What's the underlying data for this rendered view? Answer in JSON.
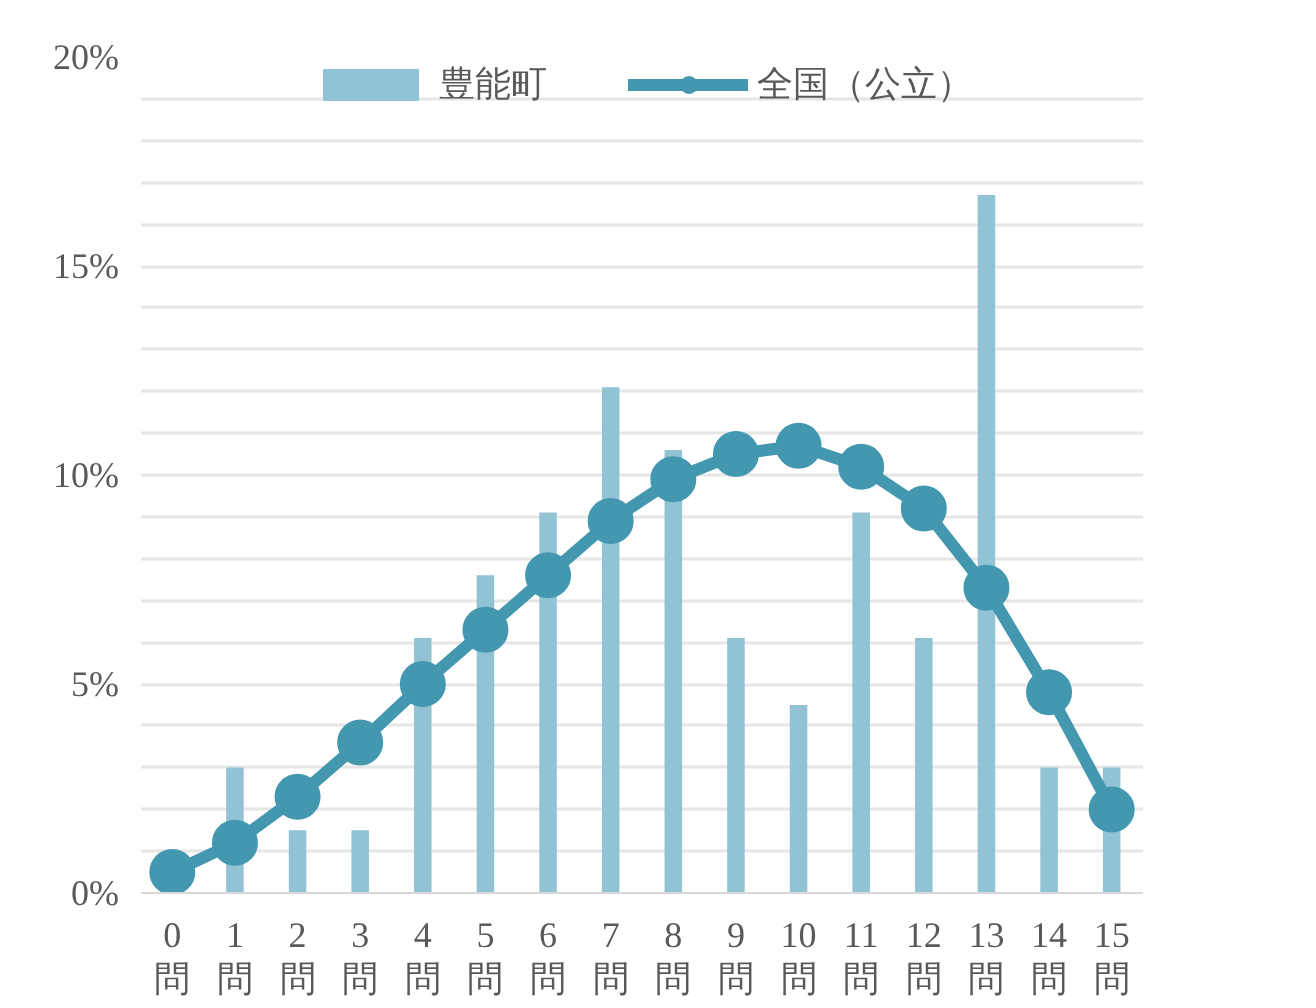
{
  "chart_data": {
    "type": "bar",
    "categories": [
      "0\n問",
      "1\n問",
      "2\n問",
      "3\n問",
      "4\n問",
      "5\n問",
      "6\n問",
      "7\n問",
      "8\n問",
      "9\n問",
      "10\n問",
      "11\n問",
      "12\n問",
      "13\n問",
      "14\n問",
      "15\n問"
    ],
    "series": [
      {
        "name": "豊能町",
        "color": "#92c3d5",
        "values": [
          0,
          3.0,
          1.5,
          1.5,
          6.1,
          7.6,
          9.1,
          12.1,
          10.6,
          6.1,
          4.5,
          9.1,
          6.1,
          16.7,
          3.0,
          3.0
        ]
      },
      {
        "name": "全国（公立）",
        "type": "line",
        "color": "#4398b0",
        "values": [
          0.5,
          1.2,
          2.3,
          3.6,
          5.0,
          6.3,
          7.6,
          8.9,
          9.9,
          10.5,
          10.7,
          10.2,
          9.2,
          7.3,
          4.8,
          2.0
        ]
      }
    ],
    "ylim": [
      0,
      20
    ],
    "yticks": [
      {
        "value": 0,
        "label": "0%"
      },
      {
        "value": 1,
        "label": null
      },
      {
        "value": 2,
        "label": null
      },
      {
        "value": 3,
        "label": null
      },
      {
        "value": 4,
        "label": null
      },
      {
        "value": 5,
        "label": "5%"
      },
      {
        "value": 6,
        "label": null
      },
      {
        "value": 7,
        "label": null
      },
      {
        "value": 8,
        "label": null
      },
      {
        "value": 9,
        "label": null
      },
      {
        "value": 10,
        "label": "10%"
      },
      {
        "value": 11,
        "label": null
      },
      {
        "value": 12,
        "label": null
      },
      {
        "value": 13,
        "label": null
      },
      {
        "value": 14,
        "label": null
      },
      {
        "value": 15,
        "label": "15%"
      },
      {
        "value": 16,
        "label": null
      },
      {
        "value": 17,
        "label": null
      },
      {
        "value": 18,
        "label": null
      },
      {
        "value": 19,
        "label": null
      },
      {
        "value": 20,
        "label": "20%"
      }
    ],
    "grid": "y",
    "legend": "top",
    "marker": "circle",
    "line_style": "solid"
  }
}
